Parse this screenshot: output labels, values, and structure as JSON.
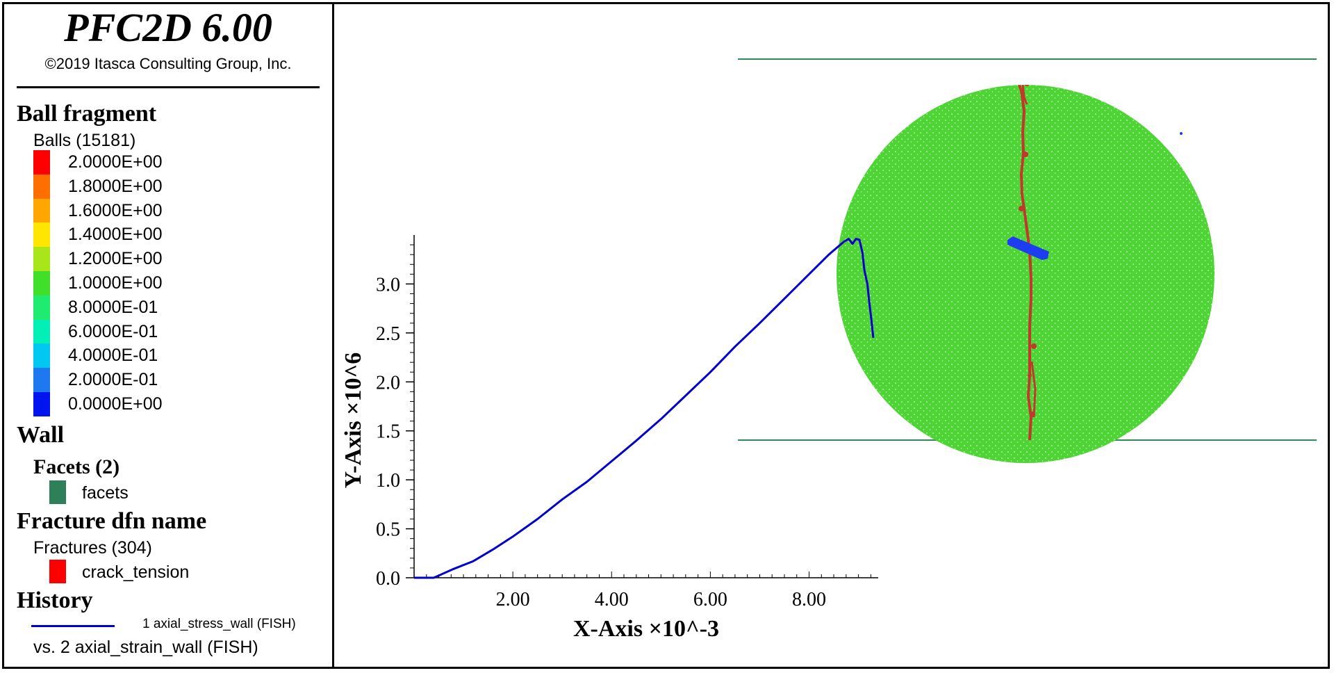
{
  "header": {
    "title": "PFC2D 6.00",
    "copyright": "©2019 Itasca Consulting Group, Inc."
  },
  "legend": {
    "ball_section": "Ball fragment",
    "balls_count": "Balls (15181)",
    "color_ramp": [
      {
        "label": "2.0000E+00",
        "color": "#ff0000"
      },
      {
        "label": "1.8000E+00",
        "color": "#ff6f00"
      },
      {
        "label": "1.6000E+00",
        "color": "#ffa600"
      },
      {
        "label": "1.4000E+00",
        "color": "#ffe600"
      },
      {
        "label": "1.2000E+00",
        "color": "#a8e61a"
      },
      {
        "label": "1.0000E+00",
        "color": "#3fdf2a"
      },
      {
        "label": "8.0000E-01",
        "color": "#1eeb6f"
      },
      {
        "label": "6.0000E-01",
        "color": "#00f0b8"
      },
      {
        "label": "4.0000E-01",
        "color": "#00c8f0"
      },
      {
        "label": "2.0000E-01",
        "color": "#1e78f0"
      },
      {
        "label": "0.0000E+00",
        "color": "#0014f0"
      }
    ],
    "wall_section": "Wall",
    "facets_heading": "Facets (2)",
    "facets_label": "facets",
    "facets_color": "#2e8059",
    "fracture_section": "Fracture dfn name",
    "fractures_count": "Fractures (304)",
    "crack_label": "crack_tension",
    "crack_color": "#ff0000",
    "history_section": "History",
    "history_line1": "1 axial_stress_wall (FISH)",
    "history_line2": "vs. 2 axial_strain_wall (FISH)",
    "history_color": "#0000cc"
  },
  "colors": {
    "specimen": "#4fd436",
    "wall_line": "#2e8b57",
    "crack": "#c0392b",
    "history_line": "#0000cc"
  },
  "chart_data": {
    "type": "line",
    "xlabel": "X-Axis ×10^-3",
    "ylabel": "Y-Axis ×10^6",
    "x_ticks": [
      "2.00",
      "4.00",
      "6.00",
      "8.00"
    ],
    "x_tick_values": [
      2,
      4,
      6,
      8
    ],
    "y_ticks": [
      "0.0",
      "0.5",
      "1.0",
      "1.5",
      "2.0",
      "2.5",
      "3.0"
    ],
    "y_tick_values": [
      0,
      0.5,
      1.0,
      1.5,
      2.0,
      2.5,
      3.0
    ],
    "xlim": [
      0,
      9.4
    ],
    "ylim": [
      0,
      3.5
    ],
    "series": [
      {
        "name": "1 axial_stress_wall (FISH)",
        "x": [
          0.0,
          0.4,
          0.8,
          1.2,
          1.6,
          2.0,
          2.5,
          3.0,
          3.5,
          4.0,
          4.5,
          5.0,
          5.5,
          6.0,
          6.5,
          7.0,
          7.5,
          8.0,
          8.4,
          8.7,
          8.8,
          8.88,
          8.95,
          9.02,
          9.08,
          9.12,
          9.18,
          9.22,
          9.26,
          9.3
        ],
        "y": [
          0.0,
          0.0,
          0.09,
          0.17,
          0.29,
          0.42,
          0.6,
          0.8,
          0.98,
          1.19,
          1.4,
          1.62,
          1.86,
          2.1,
          2.36,
          2.6,
          2.85,
          3.1,
          3.3,
          3.43,
          3.46,
          3.41,
          3.46,
          3.45,
          3.32,
          3.14,
          3.0,
          2.81,
          2.64,
          2.45
        ]
      }
    ]
  }
}
